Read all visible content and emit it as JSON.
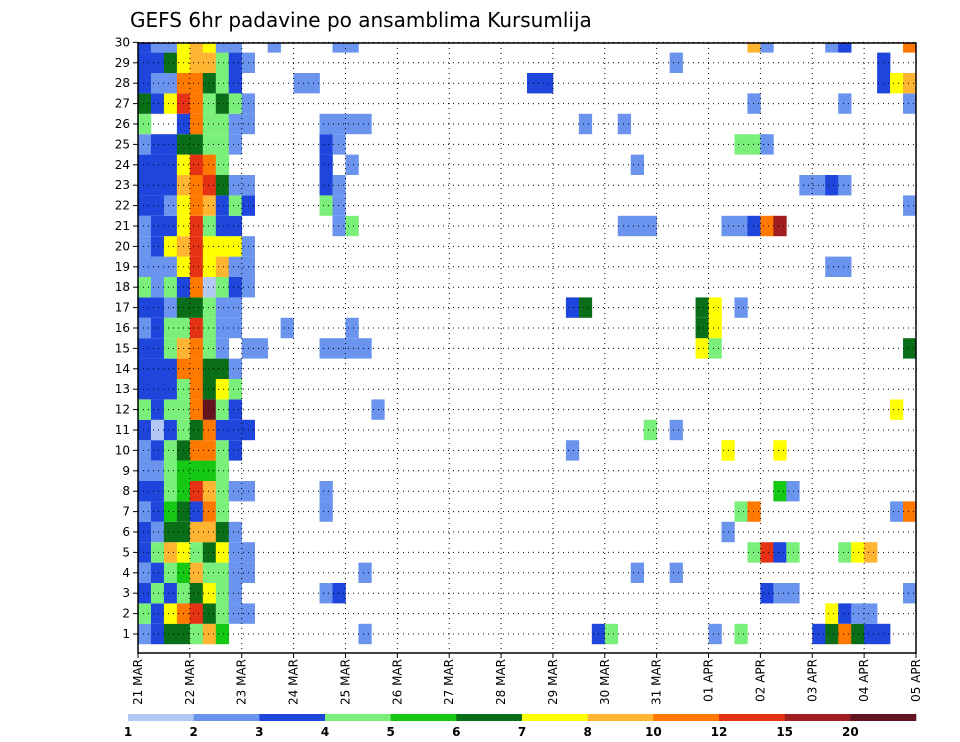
{
  "chart_data": {
    "type": "heatmap",
    "title": "GEFS 6hr padavine po ansamblima Kursumlija",
    "xlabel": "",
    "ylabel": "",
    "y_ticks": [
      "1",
      "2",
      "3",
      "4",
      "5",
      "6",
      "7",
      "8",
      "9",
      "10",
      "11",
      "12",
      "13",
      "14",
      "15",
      "16",
      "17",
      "18",
      "19",
      "20",
      "21",
      "22",
      "23",
      "24",
      "25",
      "26",
      "27",
      "28",
      "29",
      "30"
    ],
    "x_ticks": [
      "21 MAR",
      "22 MAR",
      "23 MAR",
      "24 MAR",
      "25 MAR",
      "26 MAR",
      "27 MAR",
      "28 MAR",
      "29 MAR",
      "30 MAR",
      "31 MAR",
      "01 APR",
      "02 APR",
      "03 APR",
      "04 APR",
      "05 APR"
    ],
    "steps_per_day": 4,
    "ensemble_members": 30,
    "grid": "dotted",
    "colorbar": {
      "position": "bottom",
      "bounds": [
        "1",
        "2",
        "3",
        "4",
        "5",
        "6",
        "7",
        "8",
        "10",
        "12",
        "15",
        "20"
      ],
      "colors": [
        "#b4c8f5",
        "#6a94ee",
        "#1e46dc",
        "#7af07a",
        "#14c814",
        "#0a6e18",
        "#ffff00",
        "#ffb432",
        "#ff7800",
        "#e63214",
        "#a01e1e",
        "#64141e"
      ]
    },
    "cells": [
      [
        1,
        0,
        1
      ],
      [
        1,
        1,
        2
      ],
      [
        1,
        2,
        5
      ],
      [
        1,
        3,
        5
      ],
      [
        1,
        4,
        3
      ],
      [
        1,
        5,
        7
      ],
      [
        1,
        6,
        4
      ],
      [
        1,
        17,
        1
      ],
      [
        1,
        35,
        2
      ],
      [
        1,
        36,
        3
      ],
      [
        1,
        44,
        1
      ],
      [
        1,
        46,
        3
      ],
      [
        1,
        52,
        2
      ],
      [
        1,
        53,
        5
      ],
      [
        1,
        54,
        8
      ],
      [
        1,
        55,
        5
      ],
      [
        1,
        56,
        2
      ],
      [
        1,
        57,
        2
      ],
      [
        2,
        0,
        3
      ],
      [
        2,
        1,
        2
      ],
      [
        2,
        2,
        6
      ],
      [
        2,
        3,
        8
      ],
      [
        2,
        4,
        9
      ],
      [
        2,
        5,
        5
      ],
      [
        2,
        6,
        3
      ],
      [
        2,
        7,
        1
      ],
      [
        2,
        8,
        1
      ],
      [
        2,
        53,
        6
      ],
      [
        2,
        54,
        2
      ],
      [
        2,
        55,
        1
      ],
      [
        2,
        56,
        1
      ],
      [
        3,
        0,
        2
      ],
      [
        3,
        1,
        3
      ],
      [
        3,
        2,
        2
      ],
      [
        3,
        3,
        3
      ],
      [
        3,
        4,
        5
      ],
      [
        3,
        5,
        6
      ],
      [
        3,
        6,
        3
      ],
      [
        3,
        7,
        1
      ],
      [
        3,
        14,
        1
      ],
      [
        3,
        15,
        2
      ],
      [
        3,
        48,
        2
      ],
      [
        3,
        49,
        1
      ],
      [
        3,
        50,
        1
      ],
      [
        3,
        59,
        1
      ],
      [
        4,
        0,
        1
      ],
      [
        4,
        1,
        2
      ],
      [
        4,
        2,
        3
      ],
      [
        4,
        3,
        4
      ],
      [
        4,
        4,
        7
      ],
      [
        4,
        5,
        3
      ],
      [
        4,
        6,
        3
      ],
      [
        4,
        7,
        1
      ],
      [
        4,
        8,
        1
      ],
      [
        4,
        17,
        1
      ],
      [
        4,
        38,
        1
      ],
      [
        4,
        41,
        1
      ],
      [
        5,
        0,
        2
      ],
      [
        5,
        1,
        3
      ],
      [
        5,
        2,
        7
      ],
      [
        5,
        3,
        6
      ],
      [
        5,
        4,
        3
      ],
      [
        5,
        5,
        5
      ],
      [
        5,
        6,
        6
      ],
      [
        5,
        7,
        1
      ],
      [
        5,
        8,
        1
      ],
      [
        5,
        47,
        3
      ],
      [
        5,
        48,
        9
      ],
      [
        5,
        49,
        2
      ],
      [
        5,
        50,
        3
      ],
      [
        5,
        54,
        3
      ],
      [
        5,
        55,
        6
      ],
      [
        5,
        56,
        7
      ],
      [
        6,
        0,
        2
      ],
      [
        6,
        1,
        1
      ],
      [
        6,
        2,
        5
      ],
      [
        6,
        3,
        5
      ],
      [
        6,
        4,
        7
      ],
      [
        6,
        5,
        7
      ],
      [
        6,
        6,
        5
      ],
      [
        6,
        7,
        1
      ],
      [
        6,
        45,
        1
      ],
      [
        7,
        0,
        1
      ],
      [
        7,
        1,
        2
      ],
      [
        7,
        2,
        4
      ],
      [
        7,
        3,
        5
      ],
      [
        7,
        4,
        2
      ],
      [
        7,
        5,
        8
      ],
      [
        7,
        6,
        3
      ],
      [
        7,
        14,
        1
      ],
      [
        7,
        46,
        3
      ],
      [
        7,
        47,
        8
      ],
      [
        7,
        58,
        1
      ],
      [
        7,
        59,
        8
      ],
      [
        8,
        0,
        2
      ],
      [
        8,
        1,
        2
      ],
      [
        8,
        2,
        3
      ],
      [
        8,
        3,
        4
      ],
      [
        8,
        4,
        9
      ],
      [
        8,
        5,
        7
      ],
      [
        8,
        6,
        3
      ],
      [
        8,
        7,
        1
      ],
      [
        8,
        8,
        1
      ],
      [
        8,
        14,
        1
      ],
      [
        8,
        49,
        4
      ],
      [
        8,
        50,
        1
      ],
      [
        9,
        0,
        1
      ],
      [
        9,
        1,
        1
      ],
      [
        9,
        2,
        3
      ],
      [
        9,
        3,
        4
      ],
      [
        9,
        4,
        4
      ],
      [
        9,
        5,
        4
      ],
      [
        9,
        6,
        3
      ],
      [
        10,
        0,
        1
      ],
      [
        10,
        1,
        2
      ],
      [
        10,
        2,
        3
      ],
      [
        10,
        3,
        5
      ],
      [
        10,
        4,
        8
      ],
      [
        10,
        5,
        8
      ],
      [
        10,
        6,
        3
      ],
      [
        10,
        7,
        2
      ],
      [
        10,
        33,
        1
      ],
      [
        10,
        45,
        6
      ],
      [
        10,
        49,
        6
      ],
      [
        11,
        0,
        2
      ],
      [
        11,
        1,
        0
      ],
      [
        11,
        2,
        2
      ],
      [
        11,
        3,
        3
      ],
      [
        11,
        4,
        5
      ],
      [
        11,
        5,
        8
      ],
      [
        11,
        6,
        2
      ],
      [
        11,
        7,
        2
      ],
      [
        11,
        8,
        2
      ],
      [
        11,
        39,
        3
      ],
      [
        11,
        41,
        1
      ],
      [
        12,
        0,
        3
      ],
      [
        12,
        1,
        2
      ],
      [
        12,
        2,
        3
      ],
      [
        12,
        3,
        3
      ],
      [
        12,
        4,
        8
      ],
      [
        12,
        5,
        11
      ],
      [
        12,
        6,
        3
      ],
      [
        12,
        7,
        2
      ],
      [
        12,
        18,
        1
      ],
      [
        12,
        58,
        6
      ],
      [
        13,
        0,
        2
      ],
      [
        13,
        1,
        2
      ],
      [
        13,
        2,
        2
      ],
      [
        13,
        3,
        3
      ],
      [
        13,
        4,
        8
      ],
      [
        13,
        5,
        5
      ],
      [
        13,
        6,
        6
      ],
      [
        13,
        7,
        3
      ],
      [
        14,
        0,
        2
      ],
      [
        14,
        1,
        2
      ],
      [
        14,
        2,
        2
      ],
      [
        14,
        3,
        8
      ],
      [
        14,
        4,
        8
      ],
      [
        14,
        5,
        5
      ],
      [
        14,
        6,
        5
      ],
      [
        14,
        7,
        1
      ],
      [
        15,
        0,
        2
      ],
      [
        15,
        1,
        2
      ],
      [
        15,
        2,
        3
      ],
      [
        15,
        3,
        7
      ],
      [
        15,
        4,
        8
      ],
      [
        15,
        5,
        3
      ],
      [
        15,
        6,
        1
      ],
      [
        15,
        8,
        1
      ],
      [
        15,
        9,
        1
      ],
      [
        15,
        14,
        1
      ],
      [
        15,
        15,
        1
      ],
      [
        15,
        16,
        1
      ],
      [
        15,
        17,
        1
      ],
      [
        15,
        43,
        6
      ],
      [
        15,
        44,
        3
      ],
      [
        15,
        59,
        5
      ],
      [
        16,
        0,
        1
      ],
      [
        16,
        1,
        2
      ],
      [
        16,
        2,
        3
      ],
      [
        16,
        3,
        3
      ],
      [
        16,
        4,
        9
      ],
      [
        16,
        5,
        3
      ],
      [
        16,
        6,
        1
      ],
      [
        16,
        7,
        1
      ],
      [
        16,
        11,
        1
      ],
      [
        16,
        16,
        1
      ],
      [
        16,
        43,
        5
      ],
      [
        16,
        44,
        6
      ],
      [
        17,
        0,
        2
      ],
      [
        17,
        1,
        2
      ],
      [
        17,
        2,
        1
      ],
      [
        17,
        3,
        5
      ],
      [
        17,
        4,
        5
      ],
      [
        17,
        5,
        3
      ],
      [
        17,
        6,
        1
      ],
      [
        17,
        7,
        1
      ],
      [
        17,
        33,
        2
      ],
      [
        17,
        34,
        5
      ],
      [
        17,
        43,
        5
      ],
      [
        17,
        44,
        6
      ],
      [
        17,
        46,
        1
      ],
      [
        18,
        0,
        3
      ],
      [
        18,
        1,
        1
      ],
      [
        18,
        2,
        3
      ],
      [
        18,
        3,
        2
      ],
      [
        18,
        4,
        8
      ],
      [
        18,
        5,
        0
      ],
      [
        18,
        6,
        3
      ],
      [
        18,
        7,
        2
      ],
      [
        18,
        8,
        1
      ],
      [
        19,
        0,
        1
      ],
      [
        19,
        1,
        1
      ],
      [
        19,
        2,
        1
      ],
      [
        19,
        3,
        6
      ],
      [
        19,
        4,
        9
      ],
      [
        19,
        5,
        6
      ],
      [
        19,
        6,
        7
      ],
      [
        19,
        7,
        1
      ],
      [
        19,
        8,
        1
      ],
      [
        19,
        53,
        1
      ],
      [
        19,
        54,
        1
      ],
      [
        20,
        0,
        1
      ],
      [
        20,
        1,
        2
      ],
      [
        20,
        2,
        6
      ],
      [
        20,
        3,
        7
      ],
      [
        20,
        4,
        9
      ],
      [
        20,
        5,
        6
      ],
      [
        20,
        6,
        6
      ],
      [
        20,
        7,
        6
      ],
      [
        20,
        8,
        1
      ],
      [
        21,
        0,
        1
      ],
      [
        21,
        1,
        2
      ],
      [
        21,
        2,
        2
      ],
      [
        21,
        3,
        6
      ],
      [
        21,
        4,
        9
      ],
      [
        21,
        5,
        3
      ],
      [
        21,
        6,
        2
      ],
      [
        21,
        7,
        2
      ],
      [
        21,
        15,
        1
      ],
      [
        21,
        16,
        3
      ],
      [
        21,
        37,
        1
      ],
      [
        21,
        38,
        1
      ],
      [
        21,
        39,
        1
      ],
      [
        21,
        45,
        1
      ],
      [
        21,
        46,
        1
      ],
      [
        21,
        47,
        2
      ],
      [
        21,
        48,
        8
      ],
      [
        21,
        49,
        10
      ],
      [
        22,
        0,
        2
      ],
      [
        22,
        1,
        2
      ],
      [
        22,
        2,
        1
      ],
      [
        22,
        3,
        6
      ],
      [
        22,
        4,
        8
      ],
      [
        22,
        5,
        7
      ],
      [
        22,
        6,
        2
      ],
      [
        22,
        7,
        3
      ],
      [
        22,
        8,
        2
      ],
      [
        22,
        14,
        3
      ],
      [
        22,
        15,
        1
      ],
      [
        22,
        59,
        1
      ],
      [
        23,
        0,
        2
      ],
      [
        23,
        1,
        2
      ],
      [
        23,
        2,
        2
      ],
      [
        23,
        3,
        7
      ],
      [
        23,
        4,
        8
      ],
      [
        23,
        5,
        9
      ],
      [
        23,
        6,
        5
      ],
      [
        23,
        7,
        1
      ],
      [
        23,
        8,
        1
      ],
      [
        23,
        14,
        2
      ],
      [
        23,
        15,
        1
      ],
      [
        23,
        51,
        1
      ],
      [
        23,
        52,
        1
      ],
      [
        23,
        53,
        2
      ],
      [
        23,
        54,
        1
      ],
      [
        24,
        0,
        2
      ],
      [
        24,
        1,
        2
      ],
      [
        24,
        2,
        2
      ],
      [
        24,
        3,
        6
      ],
      [
        24,
        4,
        9
      ],
      [
        24,
        5,
        8
      ],
      [
        24,
        6,
        3
      ],
      [
        24,
        14,
        2
      ],
      [
        24,
        16,
        1
      ],
      [
        24,
        38,
        1
      ],
      [
        25,
        0,
        1
      ],
      [
        25,
        1,
        2
      ],
      [
        25,
        2,
        2
      ],
      [
        25,
        3,
        5
      ],
      [
        25,
        4,
        5
      ],
      [
        25,
        5,
        3
      ],
      [
        25,
        6,
        3
      ],
      [
        25,
        7,
        1
      ],
      [
        25,
        14,
        2
      ],
      [
        25,
        15,
        1
      ],
      [
        25,
        46,
        3
      ],
      [
        25,
        47,
        3
      ],
      [
        25,
        48,
        1
      ],
      [
        26,
        0,
        3
      ],
      [
        26,
        3,
        2
      ],
      [
        26,
        4,
        8
      ],
      [
        26,
        5,
        3
      ],
      [
        26,
        6,
        3
      ],
      [
        26,
        7,
        1
      ],
      [
        26,
        8,
        1
      ],
      [
        26,
        14,
        1
      ],
      [
        26,
        15,
        1
      ],
      [
        26,
        16,
        1
      ],
      [
        26,
        17,
        1
      ],
      [
        26,
        34,
        1
      ],
      [
        26,
        37,
        1
      ],
      [
        27,
        0,
        5
      ],
      [
        27,
        1,
        2
      ],
      [
        27,
        2,
        6
      ],
      [
        27,
        3,
        9
      ],
      [
        27,
        4,
        8
      ],
      [
        27,
        5,
        3
      ],
      [
        27,
        6,
        5
      ],
      [
        27,
        7,
        3
      ],
      [
        27,
        8,
        1
      ],
      [
        27,
        47,
        1
      ],
      [
        27,
        54,
        1
      ],
      [
        27,
        59,
        1
      ],
      [
        28,
        0,
        2
      ],
      [
        28,
        1,
        1
      ],
      [
        28,
        2,
        1
      ],
      [
        28,
        3,
        8
      ],
      [
        28,
        4,
        8
      ],
      [
        28,
        5,
        5
      ],
      [
        28,
        6,
        3
      ],
      [
        28,
        7,
        2
      ],
      [
        28,
        12,
        1
      ],
      [
        28,
        13,
        1
      ],
      [
        28,
        30,
        2
      ],
      [
        28,
        31,
        2
      ],
      [
        28,
        57,
        2
      ],
      [
        28,
        58,
        6
      ],
      [
        28,
        59,
        7
      ],
      [
        29,
        0,
        2
      ],
      [
        29,
        1,
        2
      ],
      [
        29,
        2,
        5
      ],
      [
        29,
        3,
        6
      ],
      [
        29,
        4,
        7
      ],
      [
        29,
        5,
        7
      ],
      [
        29,
        6,
        3
      ],
      [
        29,
        7,
        2
      ],
      [
        29,
        8,
        1
      ],
      [
        29,
        41,
        1
      ],
      [
        29,
        57,
        2
      ],
      [
        30,
        0,
        2
      ],
      [
        30,
        1,
        1
      ],
      [
        30,
        2,
        1
      ],
      [
        30,
        3,
        6
      ],
      [
        30,
        4,
        7
      ],
      [
        30,
        5,
        6
      ],
      [
        30,
        6,
        1
      ],
      [
        30,
        7,
        1
      ],
      [
        30,
        10,
        1
      ],
      [
        30,
        15,
        1
      ],
      [
        30,
        16,
        1
      ],
      [
        30,
        47,
        7
      ],
      [
        30,
        48,
        1
      ],
      [
        30,
        53,
        1
      ],
      [
        30,
        54,
        2
      ],
      [
        30,
        59,
        8
      ]
    ]
  }
}
